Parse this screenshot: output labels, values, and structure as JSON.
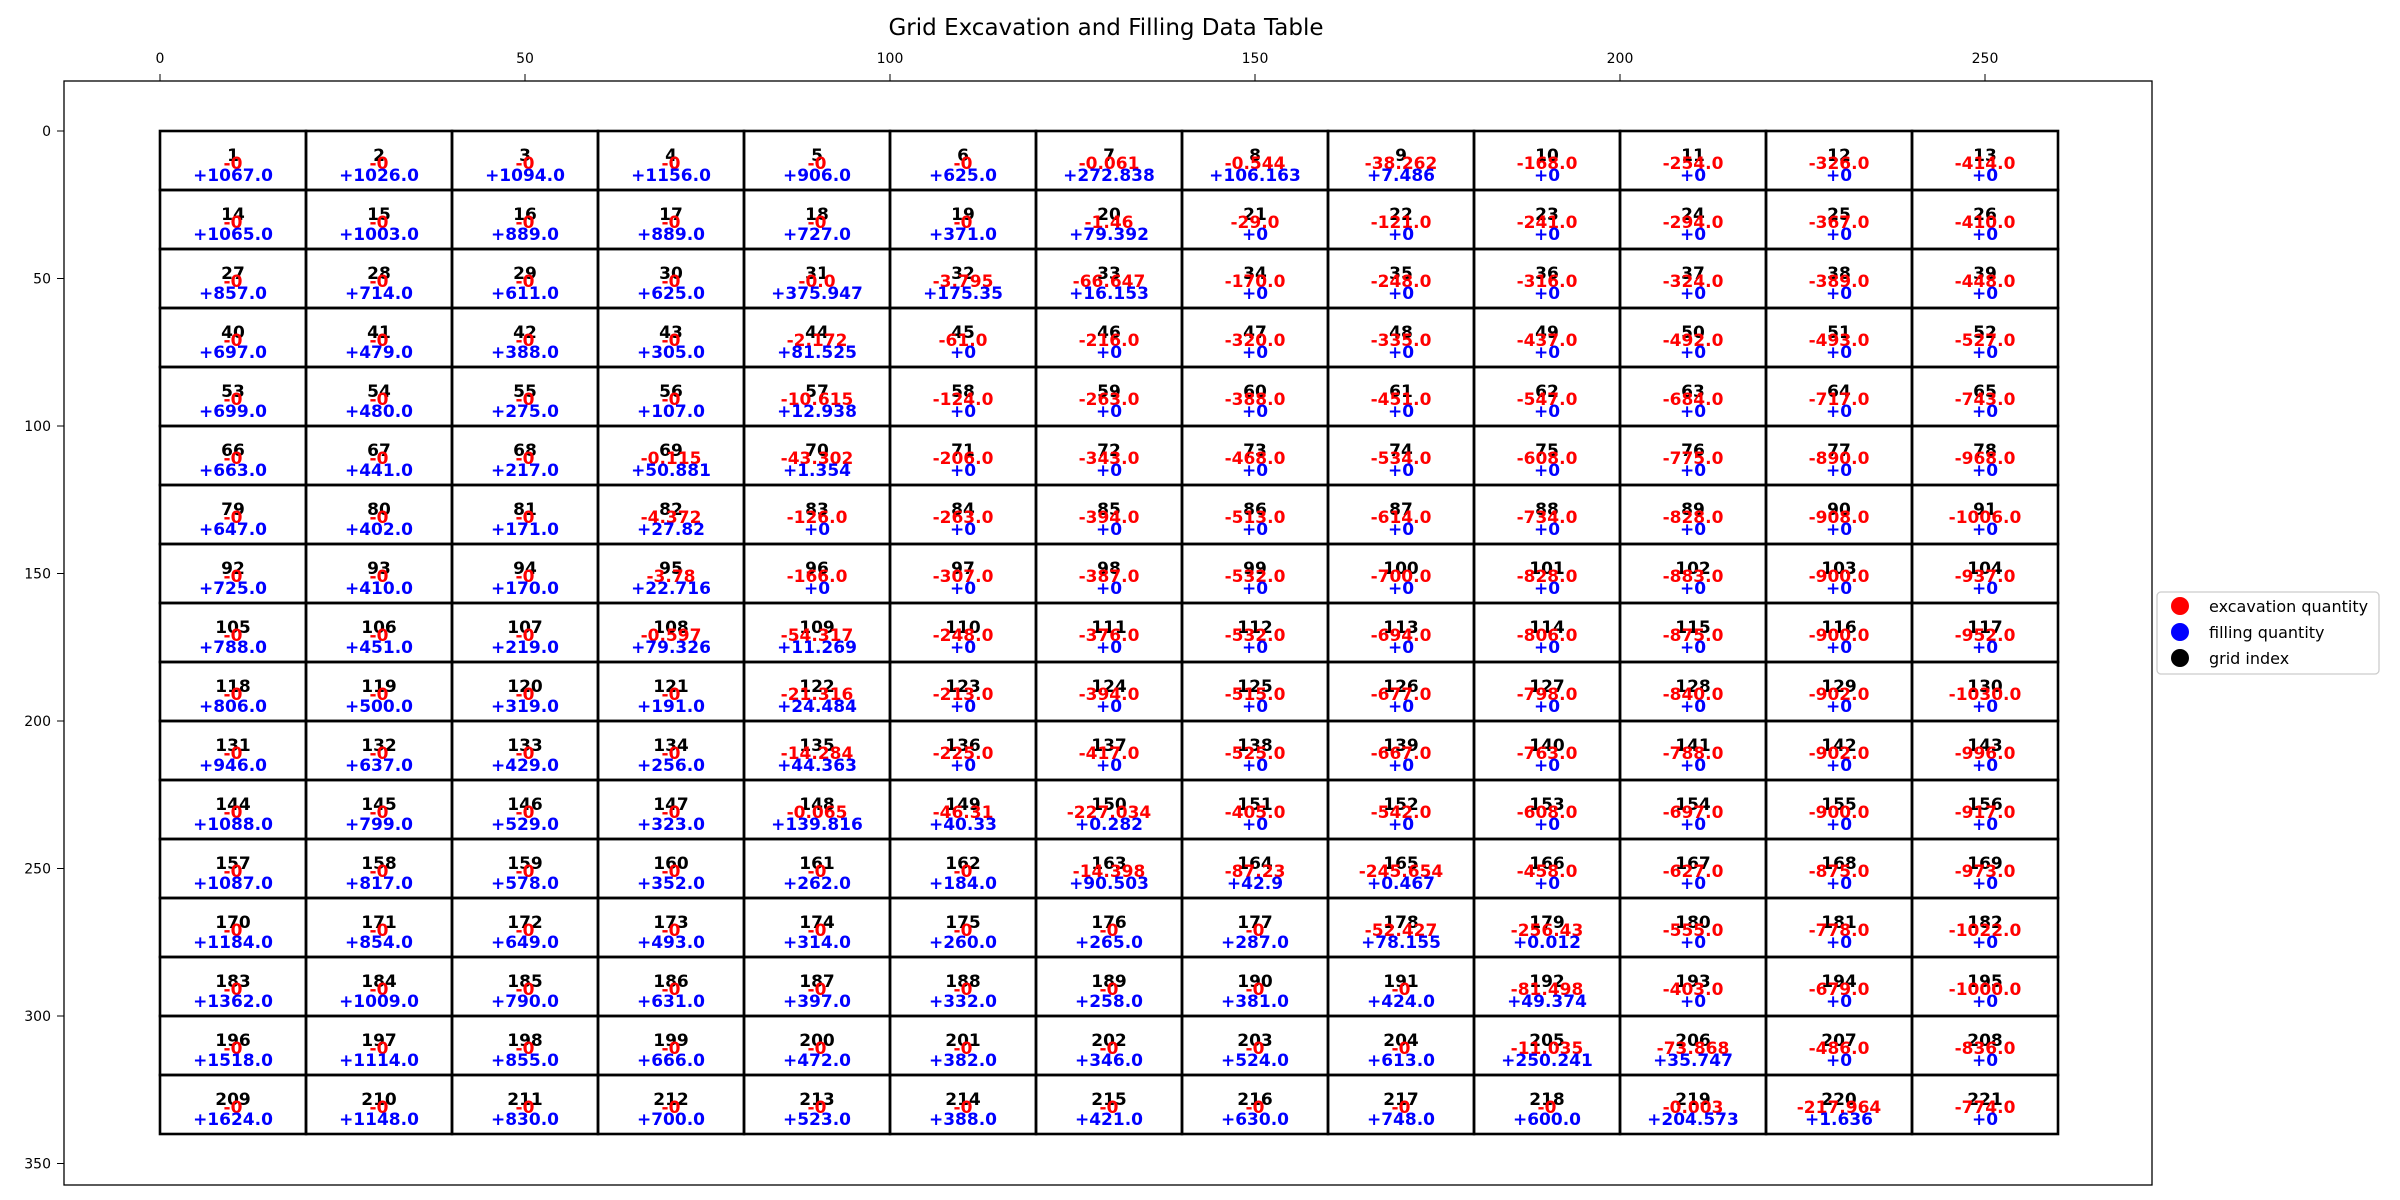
{
  "chart_data": {
    "type": "table",
    "title": "Grid Excavation and Filling Data Table",
    "x_ticks": [
      "0",
      "50",
      "100",
      "150",
      "200",
      "250"
    ],
    "y_ticks": [
      "0",
      "50",
      "100",
      "150",
      "200",
      "250",
      "300",
      "350"
    ],
    "xlim": [
      -13,
      273
    ],
    "ylim": [
      358,
      -18
    ],
    "grid": {
      "columns": 13,
      "rows": 17,
      "cell_width": 20,
      "cell_height": 20
    },
    "legend": {
      "placement": "right",
      "items": [
        {
          "label": "excavation quantity",
          "color": "#ff0000"
        },
        {
          "label": "filling quantity",
          "color": "#0000ff"
        },
        {
          "label": "grid index",
          "color": "#000000"
        }
      ]
    },
    "colors": {
      "excavation": "#ff0000",
      "filling": "#0000ff",
      "index": "#000000"
    },
    "rows": [
      [
        [
          "1",
          "-0",
          "+1067.0"
        ],
        [
          "2",
          "-0",
          "+1026.0"
        ],
        [
          "3",
          "-0",
          "+1094.0"
        ],
        [
          "4",
          "-0",
          "+1156.0"
        ],
        [
          "5",
          "-0",
          "+906.0"
        ],
        [
          "6",
          "-0",
          "+625.0"
        ],
        [
          "7",
          "-0.061",
          "+272.838"
        ],
        [
          "8",
          "-0.544",
          "+106.163"
        ],
        [
          "9",
          "-38.262",
          "+7.486"
        ],
        [
          "10",
          "-168.0",
          "+0"
        ],
        [
          "11",
          "-254.0",
          "+0"
        ],
        [
          "12",
          "-326.0",
          "+0"
        ],
        [
          "13",
          "-414.0",
          "+0"
        ]
      ],
      [
        [
          "14",
          "-0",
          "+1065.0"
        ],
        [
          "15",
          "-0",
          "+1003.0"
        ],
        [
          "16",
          "-0",
          "+889.0"
        ],
        [
          "17",
          "-0",
          "+889.0"
        ],
        [
          "18",
          "-0",
          "+727.0"
        ],
        [
          "19",
          "-0",
          "+371.0"
        ],
        [
          "20",
          "-1.46",
          "+79.392"
        ],
        [
          "21",
          "-29.0",
          "+0"
        ],
        [
          "22",
          "-121.0",
          "+0"
        ],
        [
          "23",
          "-241.0",
          "+0"
        ],
        [
          "24",
          "-294.0",
          "+0"
        ],
        [
          "25",
          "-367.0",
          "+0"
        ],
        [
          "26",
          "-410.0",
          "+0"
        ]
      ],
      [
        [
          "27",
          "-0",
          "+857.0"
        ],
        [
          "28",
          "-0",
          "+714.0"
        ],
        [
          "29",
          "-0",
          "+611.0"
        ],
        [
          "30",
          "-0",
          "+625.0"
        ],
        [
          "31",
          "-0.0",
          "+375.947"
        ],
        [
          "32",
          "-3.795",
          "+175.35"
        ],
        [
          "33",
          "-66.647",
          "+16.153"
        ],
        [
          "34",
          "-170.0",
          "+0"
        ],
        [
          "35",
          "-248.0",
          "+0"
        ],
        [
          "36",
          "-316.0",
          "+0"
        ],
        [
          "37",
          "-324.0",
          "+0"
        ],
        [
          "38",
          "-389.0",
          "+0"
        ],
        [
          "39",
          "-448.0",
          "+0"
        ]
      ],
      [
        [
          "40",
          "-0",
          "+697.0"
        ],
        [
          "41",
          "-0",
          "+479.0"
        ],
        [
          "42",
          "-0",
          "+388.0"
        ],
        [
          "43",
          "-0",
          "+305.0"
        ],
        [
          "44",
          "-2.172",
          "+81.525"
        ],
        [
          "45",
          "-61.0",
          "+0"
        ],
        [
          "46",
          "-216.0",
          "+0"
        ],
        [
          "47",
          "-320.0",
          "+0"
        ],
        [
          "48",
          "-335.0",
          "+0"
        ],
        [
          "49",
          "-437.0",
          "+0"
        ],
        [
          "50",
          "-492.0",
          "+0"
        ],
        [
          "51",
          "-493.0",
          "+0"
        ],
        [
          "52",
          "-527.0",
          "+0"
        ]
      ],
      [
        [
          "53",
          "-0",
          "+699.0"
        ],
        [
          "54",
          "-0",
          "+480.0"
        ],
        [
          "55",
          "-0",
          "+275.0"
        ],
        [
          "56",
          "-0",
          "+107.0"
        ],
        [
          "57",
          "-10.615",
          "+12.938"
        ],
        [
          "58",
          "-124.0",
          "+0"
        ],
        [
          "59",
          "-263.0",
          "+0"
        ],
        [
          "60",
          "-388.0",
          "+0"
        ],
        [
          "61",
          "-451.0",
          "+0"
        ],
        [
          "62",
          "-547.0",
          "+0"
        ],
        [
          "63",
          "-684.0",
          "+0"
        ],
        [
          "64",
          "-717.0",
          "+0"
        ],
        [
          "65",
          "-743.0",
          "+0"
        ]
      ],
      [
        [
          "66",
          "-0",
          "+663.0"
        ],
        [
          "67",
          "-0",
          "+441.0"
        ],
        [
          "68",
          "-0",
          "+217.0"
        ],
        [
          "69",
          "-0.115",
          "+50.881"
        ],
        [
          "70",
          "-43.302",
          "+1.354"
        ],
        [
          "71",
          "-206.0",
          "+0"
        ],
        [
          "72",
          "-343.0",
          "+0"
        ],
        [
          "73",
          "-468.0",
          "+0"
        ],
        [
          "74",
          "-534.0",
          "+0"
        ],
        [
          "75",
          "-608.0",
          "+0"
        ],
        [
          "76",
          "-775.0",
          "+0"
        ],
        [
          "77",
          "-890.0",
          "+0"
        ],
        [
          "78",
          "-968.0",
          "+0"
        ]
      ],
      [
        [
          "79",
          "-0",
          "+647.0"
        ],
        [
          "80",
          "-0",
          "+402.0"
        ],
        [
          "81",
          "-0",
          "+171.0"
        ],
        [
          "82",
          "-4.372",
          "+27.82"
        ],
        [
          "83",
          "-126.0",
          "+0"
        ],
        [
          "84",
          "-263.0",
          "+0"
        ],
        [
          "85",
          "-394.0",
          "+0"
        ],
        [
          "86",
          "-513.0",
          "+0"
        ],
        [
          "87",
          "-614.0",
          "+0"
        ],
        [
          "88",
          "-734.0",
          "+0"
        ],
        [
          "89",
          "-828.0",
          "+0"
        ],
        [
          "90",
          "-908.0",
          "+0"
        ],
        [
          "91",
          "-1006.0",
          "+0"
        ]
      ],
      [
        [
          "92",
          "-0",
          "+725.0"
        ],
        [
          "93",
          "-0",
          "+410.0"
        ],
        [
          "94",
          "-0",
          "+170.0"
        ],
        [
          "95",
          "-3.78",
          "+22.716"
        ],
        [
          "96",
          "-166.0",
          "+0"
        ],
        [
          "97",
          "-307.0",
          "+0"
        ],
        [
          "98",
          "-387.0",
          "+0"
        ],
        [
          "99",
          "-532.0",
          "+0"
        ],
        [
          "100",
          "-700.0",
          "+0"
        ],
        [
          "101",
          "-828.0",
          "+0"
        ],
        [
          "102",
          "-883.0",
          "+0"
        ],
        [
          "103",
          "-900.0",
          "+0"
        ],
        [
          "104",
          "-937.0",
          "+0"
        ]
      ],
      [
        [
          "105",
          "-0",
          "+788.0"
        ],
        [
          "106",
          "-0",
          "+451.0"
        ],
        [
          "107",
          "-0",
          "+219.0"
        ],
        [
          "108",
          "-0.597",
          "+79.326"
        ],
        [
          "109",
          "-54.317",
          "+11.269"
        ],
        [
          "110",
          "-248.0",
          "+0"
        ],
        [
          "111",
          "-376.0",
          "+0"
        ],
        [
          "112",
          "-532.0",
          "+0"
        ],
        [
          "113",
          "-694.0",
          "+0"
        ],
        [
          "114",
          "-806.0",
          "+0"
        ],
        [
          "115",
          "-875.0",
          "+0"
        ],
        [
          "116",
          "-900.0",
          "+0"
        ],
        [
          "117",
          "-952.0",
          "+0"
        ]
      ],
      [
        [
          "118",
          "-0",
          "+806.0"
        ],
        [
          "119",
          "-0",
          "+500.0"
        ],
        [
          "120",
          "-0",
          "+319.0"
        ],
        [
          "121",
          "-0",
          "+191.0"
        ],
        [
          "122",
          "-21.316",
          "+24.484"
        ],
        [
          "123",
          "-213.0",
          "+0"
        ],
        [
          "124",
          "-394.0",
          "+0"
        ],
        [
          "125",
          "-515.0",
          "+0"
        ],
        [
          "126",
          "-677.0",
          "+0"
        ],
        [
          "127",
          "-798.0",
          "+0"
        ],
        [
          "128",
          "-840.0",
          "+0"
        ],
        [
          "129",
          "-902.0",
          "+0"
        ],
        [
          "130",
          "-1030.0",
          "+0"
        ]
      ],
      [
        [
          "131",
          "-0",
          "+946.0"
        ],
        [
          "132",
          "-0",
          "+637.0"
        ],
        [
          "133",
          "-0",
          "+429.0"
        ],
        [
          "134",
          "-0",
          "+256.0"
        ],
        [
          "135",
          "-14.284",
          "+44.363"
        ],
        [
          "136",
          "-225.0",
          "+0"
        ],
        [
          "137",
          "-417.0",
          "+0"
        ],
        [
          "138",
          "-525.0",
          "+0"
        ],
        [
          "139",
          "-667.0",
          "+0"
        ],
        [
          "140",
          "-763.0",
          "+0"
        ],
        [
          "141",
          "-788.0",
          "+0"
        ],
        [
          "142",
          "-902.0",
          "+0"
        ],
        [
          "143",
          "-996.0",
          "+0"
        ]
      ],
      [
        [
          "144",
          "-0",
          "+1088.0"
        ],
        [
          "145",
          "-0",
          "+799.0"
        ],
        [
          "146",
          "-0",
          "+529.0"
        ],
        [
          "147",
          "-0",
          "+323.0"
        ],
        [
          "148",
          "-0.065",
          "+139.816"
        ],
        [
          "149",
          "-46.31",
          "+40.33"
        ],
        [
          "150",
          "-227.034",
          "+0.282"
        ],
        [
          "151",
          "-405.0",
          "+0"
        ],
        [
          "152",
          "-542.0",
          "+0"
        ],
        [
          "153",
          "-608.0",
          "+0"
        ],
        [
          "154",
          "-697.0",
          "+0"
        ],
        [
          "155",
          "-900.0",
          "+0"
        ],
        [
          "156",
          "-917.0",
          "+0"
        ]
      ],
      [
        [
          "157",
          "-0",
          "+1087.0"
        ],
        [
          "158",
          "-0",
          "+817.0"
        ],
        [
          "159",
          "-0",
          "+578.0"
        ],
        [
          "160",
          "-0",
          "+352.0"
        ],
        [
          "161",
          "-0",
          "+262.0"
        ],
        [
          "162",
          "-0",
          "+184.0"
        ],
        [
          "163",
          "-14.398",
          "+90.503"
        ],
        [
          "164",
          "-87.23",
          "+42.9"
        ],
        [
          "165",
          "-245.654",
          "+0.467"
        ],
        [
          "166",
          "-458.0",
          "+0"
        ],
        [
          "167",
          "-627.0",
          "+0"
        ],
        [
          "168",
          "-875.0",
          "+0"
        ],
        [
          "169",
          "-973.0",
          "+0"
        ]
      ],
      [
        [
          "170",
          "-0",
          "+1184.0"
        ],
        [
          "171",
          "-0",
          "+854.0"
        ],
        [
          "172",
          "-0",
          "+649.0"
        ],
        [
          "173",
          "-0",
          "+493.0"
        ],
        [
          "174",
          "-0",
          "+314.0"
        ],
        [
          "175",
          "-0",
          "+260.0"
        ],
        [
          "176",
          "-0",
          "+265.0"
        ],
        [
          "177",
          "-0",
          "+287.0"
        ],
        [
          "178",
          "-52.427",
          "+78.155"
        ],
        [
          "179",
          "-256.43",
          "+0.012"
        ],
        [
          "180",
          "-555.0",
          "+0"
        ],
        [
          "181",
          "-778.0",
          "+0"
        ],
        [
          "182",
          "-1022.0",
          "+0"
        ]
      ],
      [
        [
          "183",
          "-0",
          "+1362.0"
        ],
        [
          "184",
          "-0",
          "+1009.0"
        ],
        [
          "185",
          "-0",
          "+790.0"
        ],
        [
          "186",
          "-0",
          "+631.0"
        ],
        [
          "187",
          "-0",
          "+397.0"
        ],
        [
          "188",
          "-0",
          "+332.0"
        ],
        [
          "189",
          "-0",
          "+258.0"
        ],
        [
          "190",
          "-0",
          "+381.0"
        ],
        [
          "191",
          "-0",
          "+424.0"
        ],
        [
          "192",
          "-81.498",
          "+49.374"
        ],
        [
          "193",
          "-403.0",
          "+0"
        ],
        [
          "194",
          "-679.0",
          "+0"
        ],
        [
          "195",
          "-1000.0",
          "+0"
        ]
      ],
      [
        [
          "196",
          "-0",
          "+1518.0"
        ],
        [
          "197",
          "-0",
          "+1114.0"
        ],
        [
          "198",
          "-0",
          "+855.0"
        ],
        [
          "199",
          "-0",
          "+666.0"
        ],
        [
          "200",
          "-0",
          "+472.0"
        ],
        [
          "201",
          "-0",
          "+382.0"
        ],
        [
          "202",
          "-0",
          "+346.0"
        ],
        [
          "203",
          "-0",
          "+524.0"
        ],
        [
          "204",
          "-0",
          "+613.0"
        ],
        [
          "205",
          "-11.035",
          "+250.241"
        ],
        [
          "206",
          "-73.868",
          "+35.747"
        ],
        [
          "207",
          "-486.0",
          "+0"
        ],
        [
          "208",
          "-836.0",
          "+0"
        ]
      ],
      [
        [
          "209",
          "-0",
          "+1624.0"
        ],
        [
          "210",
          "-0",
          "+1148.0"
        ],
        [
          "211",
          "-0",
          "+830.0"
        ],
        [
          "212",
          "-0",
          "+700.0"
        ],
        [
          "213",
          "-0",
          "+523.0"
        ],
        [
          "214",
          "-0",
          "+388.0"
        ],
        [
          "215",
          "-0",
          "+421.0"
        ],
        [
          "216",
          "-0",
          "+630.0"
        ],
        [
          "217",
          "-0",
          "+748.0"
        ],
        [
          "218",
          "-0",
          "+600.0"
        ],
        [
          "219",
          "-0.003",
          "+204.573"
        ],
        [
          "220",
          "-217.964",
          "+1.636"
        ],
        [
          "221",
          "-774.0",
          "+0"
        ]
      ]
    ]
  }
}
